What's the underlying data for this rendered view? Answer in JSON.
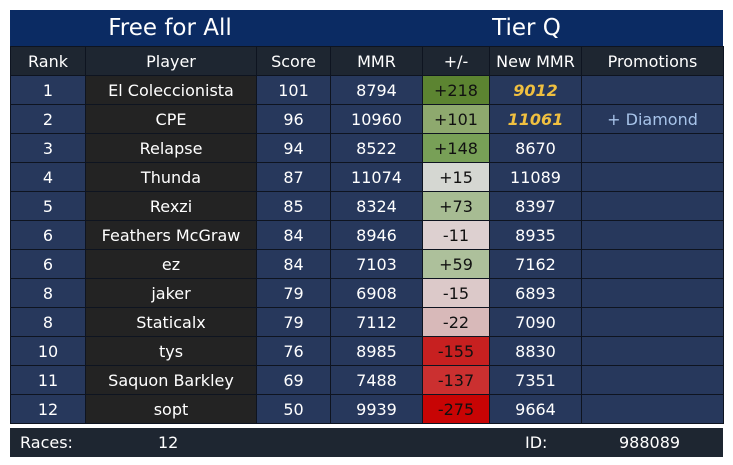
{
  "header": {
    "mode": "Free for All",
    "tier": "Tier Q"
  },
  "columns": [
    "Rank",
    "Player",
    "Score",
    "MMR",
    "+/-",
    "New MMR",
    "Promotions"
  ],
  "rows": [
    {
      "rank": "1",
      "player": "El Coleccionista",
      "score": "101",
      "mmr": "8794",
      "delta": "+218",
      "new_mmr": "9012",
      "promotion": "",
      "highlight": true,
      "delta_color": "#5c8431"
    },
    {
      "rank": "2",
      "player": "CPE",
      "score": "96",
      "mmr": "10960",
      "delta": "+101",
      "new_mmr": "11061",
      "promotion": "+ Diamond",
      "highlight": true,
      "delta_color": "#8ea96e"
    },
    {
      "rank": "3",
      "player": "Relapse",
      "score": "94",
      "mmr": "8522",
      "delta": "+148",
      "new_mmr": "8670",
      "promotion": "",
      "highlight": false,
      "delta_color": "#78a057"
    },
    {
      "rank": "4",
      "player": "Thunda",
      "score": "87",
      "mmr": "11074",
      "delta": "+15",
      "new_mmr": "11089",
      "promotion": "",
      "highlight": false,
      "delta_color": "#d5d7d2"
    },
    {
      "rank": "5",
      "player": "Rexzi",
      "score": "85",
      "mmr": "8324",
      "delta": "+73",
      "new_mmr": "8397",
      "promotion": "",
      "highlight": false,
      "delta_color": "#a7bc93"
    },
    {
      "rank": "6",
      "player": "Feathers McGraw",
      "score": "84",
      "mmr": "8946",
      "delta": "-11",
      "new_mmr": "8935",
      "promotion": "",
      "highlight": false,
      "delta_color": "#ddd0d0"
    },
    {
      "rank": "6",
      "player": "ez",
      "score": "84",
      "mmr": "7103",
      "delta": "+59",
      "new_mmr": "7162",
      "promotion": "",
      "highlight": false,
      "delta_color": "#adc09b"
    },
    {
      "rank": "8",
      "player": "jaker",
      "score": "79",
      "mmr": "6908",
      "delta": "-15",
      "new_mmr": "6893",
      "promotion": "",
      "highlight": false,
      "delta_color": "#dcc9c9"
    },
    {
      "rank": "8",
      "player": "Staticalx",
      "score": "79",
      "mmr": "7112",
      "delta": "-22",
      "new_mmr": "7090",
      "promotion": "",
      "highlight": false,
      "delta_color": "#d8b9b9"
    },
    {
      "rank": "10",
      "player": "tys",
      "score": "76",
      "mmr": "8985",
      "delta": "-155",
      "new_mmr": "8830",
      "promotion": "",
      "highlight": false,
      "delta_color": "#c72020"
    },
    {
      "rank": "11",
      "player": "Saquon Barkley",
      "score": "69",
      "mmr": "7488",
      "delta": "-137",
      "new_mmr": "7351",
      "promotion": "",
      "highlight": false,
      "delta_color": "#cb3030"
    },
    {
      "rank": "12",
      "player": "sopt",
      "score": "50",
      "mmr": "9939",
      "delta": "-275",
      "new_mmr": "9664",
      "promotion": "",
      "highlight": false,
      "delta_color": "#c80404"
    }
  ],
  "footer": {
    "races_label": "Races:",
    "races_value": "12",
    "id_label": "ID:",
    "id_value": "988089"
  }
}
